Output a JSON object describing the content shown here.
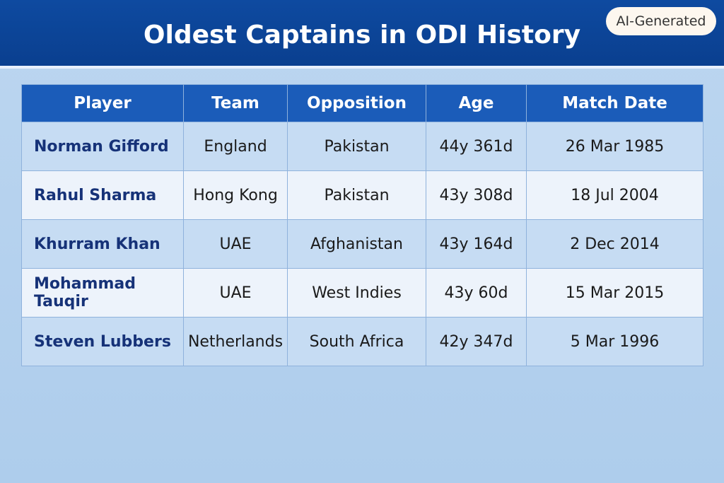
{
  "header": {
    "title": "Oldest Captains in ODI History",
    "badge": "AI-Generated"
  },
  "table": {
    "columns": [
      "Player",
      "Team",
      "Opposition",
      "Age",
      "Match Date"
    ],
    "rows": [
      [
        "Norman Gifford",
        "England",
        "Pakistan",
        "44y 361d",
        "26 Mar 1985"
      ],
      [
        "Rahul Sharma",
        "Hong Kong",
        "Pakistan",
        "43y 308d",
        "18 Jul 2004"
      ],
      [
        "Khurram Khan",
        "UAE",
        "Afghanistan",
        "43y 164d",
        "2 Dec 2014"
      ],
      [
        "Mohammad Tauqir",
        "UAE",
        "West Indies",
        "43y 60d",
        "15 Mar 2015"
      ],
      [
        "Steven Lubbers",
        "Netherlands",
        "South Africa",
        "42y 347d",
        "5 Mar 1996"
      ]
    ]
  }
}
